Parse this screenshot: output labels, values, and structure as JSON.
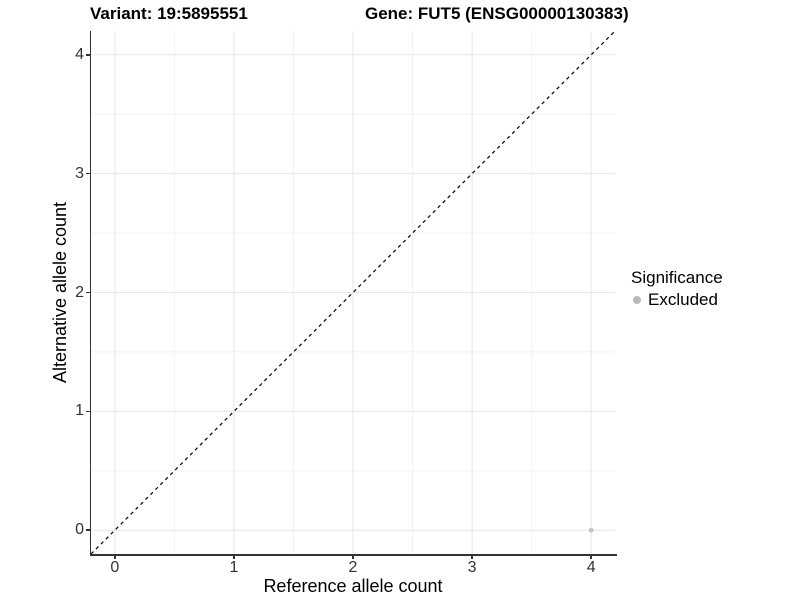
{
  "chart_data": {
    "type": "scatter",
    "titles": {
      "left": "Variant: 19:5895551",
      "right": "Gene: FUT5 (ENSG00000130383)"
    },
    "xlabel": "Reference allele count",
    "ylabel": "Alternative allele count",
    "xlim": [
      -0.2,
      4.2
    ],
    "ylim": [
      -0.2,
      4.2
    ],
    "x_ticks": [
      0,
      1,
      2,
      3,
      4
    ],
    "y_ticks": [
      0,
      1,
      2,
      3,
      4
    ],
    "x_minor_ticks": [
      0.5,
      1.5,
      2.5,
      3.5
    ],
    "y_minor_ticks": [
      0.5,
      1.5,
      2.5,
      3.5
    ],
    "grid": "on",
    "reference_line": {
      "kind": "identity y=x",
      "style": "dashed",
      "color": "#000000"
    },
    "series": [
      {
        "name": "Excluded",
        "color": "#c3c3c3",
        "points": [
          {
            "x": 4,
            "y": 0
          }
        ]
      }
    ],
    "legend": {
      "position": "right",
      "title": "Significance",
      "items": [
        {
          "label": "Excluded",
          "color": "#b9b9b9"
        }
      ]
    }
  },
  "style": {
    "major_grid_color": "#e6e6e6",
    "minor_grid_color": "#f2f2f2",
    "axis_line_color": "#333333",
    "tick_color": "#333333",
    "tick_label_color": "#333333",
    "title_color": "#000000"
  }
}
